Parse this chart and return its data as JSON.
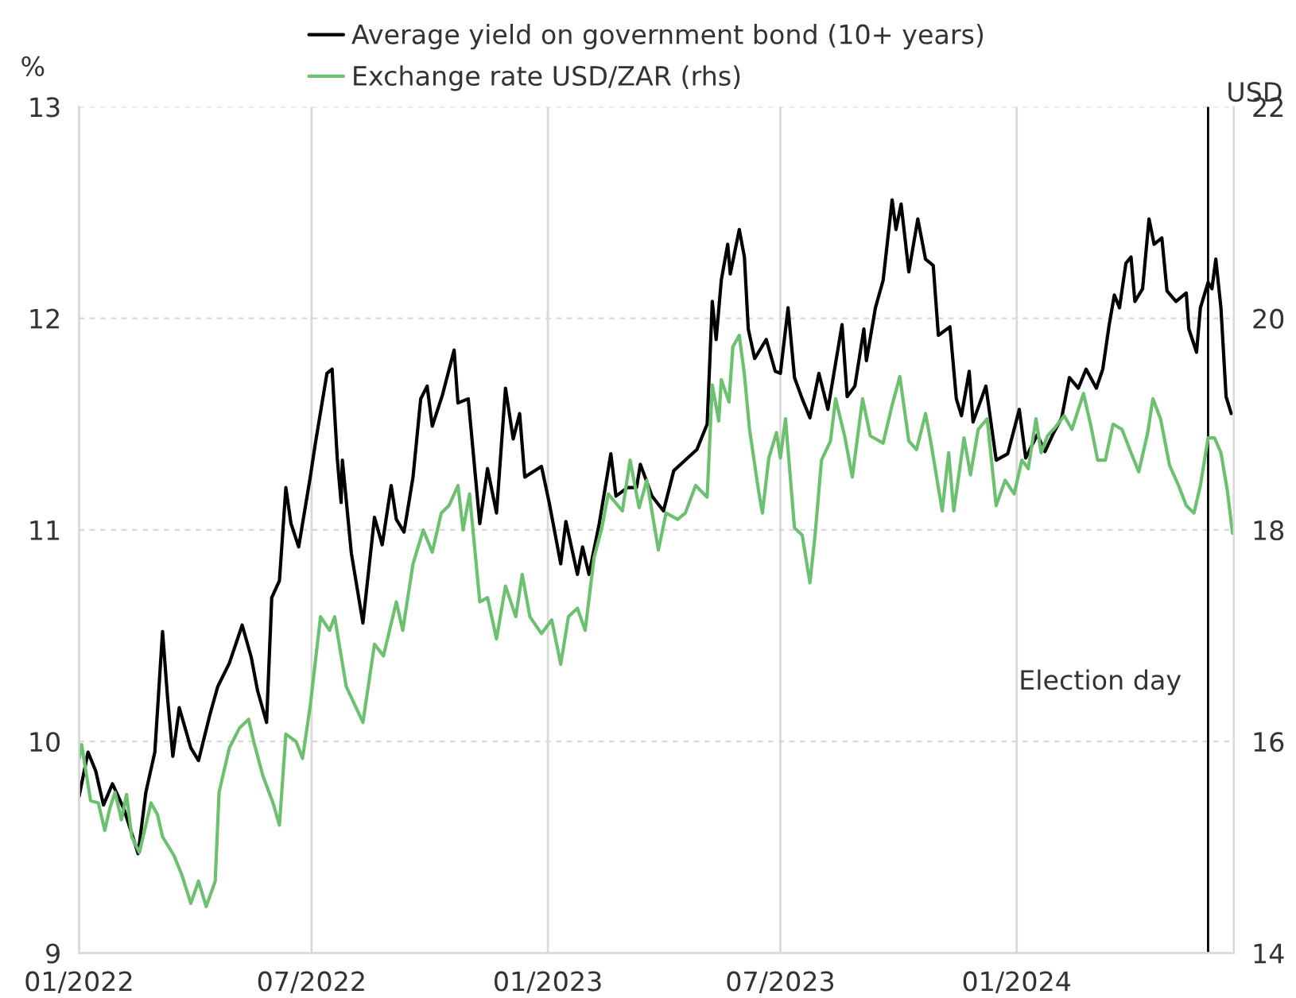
{
  "chart_data": {
    "type": "line",
    "ylabel": "%",
    "y2label": "USD",
    "xlim": [
      "2022-01-01",
      "2024-06-18"
    ],
    "xticks": [
      {
        "value": "2022-01-01",
        "label": "01/2022"
      },
      {
        "value": "2022-07-01",
        "label": "07/2022"
      },
      {
        "value": "2023-01-01",
        "label": "01/2023"
      },
      {
        "value": "2023-07-01",
        "label": "07/2023"
      },
      {
        "value": "2024-01-01",
        "label": "01/2024"
      }
    ],
    "ylim": [
      9,
      13
    ],
    "yticks": [
      9,
      10,
      11,
      12,
      13
    ],
    "y2lim": [
      14,
      22
    ],
    "y2ticks": [
      14,
      16,
      18,
      20,
      22
    ],
    "grid": true,
    "legend": "top",
    "marker": "none",
    "line_style": "solid",
    "ref_lines": [
      {
        "axis": "x",
        "value": "2024-05-29",
        "label": "Election day",
        "color": "#000000"
      }
    ],
    "series": [
      {
        "name": "Average yield on government bond (10+ years)",
        "color": "#000000",
        "x": [
          "2022-01-01",
          "2022-01-08",
          "2022-01-14",
          "2022-01-20",
          "2022-01-27",
          "2022-02-05",
          "2022-02-16",
          "2022-02-22",
          "2022-03-01",
          "2022-03-07",
          "2022-03-11",
          "2022-03-15",
          "2022-03-20",
          "2022-03-29",
          "2022-04-04",
          "2022-04-13",
          "2022-04-19",
          "2022-04-28",
          "2022-05-08",
          "2022-05-15",
          "2022-05-20",
          "2022-05-27",
          "2022-05-31",
          "2022-06-06",
          "2022-06-11",
          "2022-06-15",
          "2022-06-21",
          "2022-06-30",
          "2022-07-04",
          "2022-07-13",
          "2022-07-17",
          "2022-07-21",
          "2022-07-24",
          "2022-07-25",
          "2022-08-01",
          "2022-08-10",
          "2022-08-19",
          "2022-08-25",
          "2022-09-01",
          "2022-09-05",
          "2022-09-11",
          "2022-09-18",
          "2022-09-24",
          "2022-09-29",
          "2022-10-03",
          "2022-10-11",
          "2022-10-20",
          "2022-10-23",
          "2022-10-31",
          "2022-11-09",
          "2022-11-15",
          "2022-11-22",
          "2022-11-29",
          "2022-12-05",
          "2022-12-10",
          "2022-12-14",
          "2022-12-27",
          "2023-01-02",
          "2023-01-11",
          "2023-01-15",
          "2023-01-24",
          "2023-01-28",
          "2023-02-02",
          "2023-02-10",
          "2023-02-19",
          "2023-02-23",
          "2023-03-04",
          "2023-03-11",
          "2023-03-14",
          "2023-03-23",
          "2023-04-01",
          "2023-04-09",
          "2023-04-18",
          "2023-04-27",
          "2023-05-05",
          "2023-05-09",
          "2023-05-12",
          "2023-05-16",
          "2023-05-21",
          "2023-05-23",
          "2023-05-30",
          "2023-06-03",
          "2023-06-06",
          "2023-06-11",
          "2023-06-20",
          "2023-06-27",
          "2023-07-01",
          "2023-07-07",
          "2023-07-12",
          "2023-07-18",
          "2023-07-24",
          "2023-07-31",
          "2023-08-07",
          "2023-08-18",
          "2023-08-22",
          "2023-08-28",
          "2023-09-04",
          "2023-09-06",
          "2023-09-13",
          "2023-09-19",
          "2023-09-26",
          "2023-09-29",
          "2023-10-03",
          "2023-10-09",
          "2023-10-16",
          "2023-10-22",
          "2023-10-28",
          "2023-11-01",
          "2023-11-10",
          "2023-11-15",
          "2023-11-19",
          "2023-11-25",
          "2023-11-28",
          "2023-12-08",
          "2023-12-16",
          "2023-12-25",
          "2024-01-03",
          "2024-01-08",
          "2024-01-17",
          "2024-01-23",
          "2024-01-29",
          "2024-02-05",
          "2024-02-11",
          "2024-02-18",
          "2024-02-24",
          "2024-03-03",
          "2024-03-08",
          "2024-03-13",
          "2024-03-17",
          "2024-03-21",
          "2024-03-26",
          "2024-03-30",
          "2024-04-02",
          "2024-04-08",
          "2024-04-13",
          "2024-04-17",
          "2024-04-23",
          "2024-04-27",
          "2024-05-04",
          "2024-05-12",
          "2024-05-14",
          "2024-05-20",
          "2024-05-23",
          "2024-05-29",
          "2024-06-01",
          "2024-06-04",
          "2024-06-08",
          "2024-06-12",
          "2024-06-16"
        ],
        "values": [
          9.74,
          9.95,
          9.86,
          9.7,
          9.8,
          9.68,
          9.47,
          9.76,
          9.95,
          10.52,
          10.2,
          9.93,
          10.16,
          9.97,
          9.91,
          10.13,
          10.26,
          10.37,
          10.55,
          10.4,
          10.24,
          10.09,
          10.68,
          10.76,
          11.2,
          11.03,
          10.92,
          11.25,
          11.41,
          11.74,
          11.76,
          11.34,
          11.13,
          11.33,
          10.89,
          10.56,
          11.06,
          10.93,
          11.21,
          11.05,
          10.99,
          11.25,
          11.62,
          11.68,
          11.49,
          11.64,
          11.85,
          11.6,
          11.62,
          11.03,
          11.29,
          11.08,
          11.67,
          11.43,
          11.55,
          11.25,
          11.3,
          11.13,
          10.84,
          11.04,
          10.79,
          10.92,
          10.79,
          11.03,
          11.36,
          11.16,
          11.2,
          11.2,
          11.31,
          11.16,
          11.09,
          11.28,
          11.33,
          11.38,
          11.5,
          12.08,
          11.9,
          12.18,
          12.35,
          12.21,
          12.42,
          12.29,
          11.95,
          11.81,
          11.9,
          11.75,
          11.74,
          12.05,
          11.72,
          11.62,
          11.53,
          11.74,
          11.57,
          11.97,
          11.63,
          11.68,
          11.95,
          11.8,
          12.05,
          12.18,
          12.56,
          12.42,
          12.54,
          12.22,
          12.47,
          12.28,
          12.25,
          11.92,
          11.96,
          11.62,
          11.54,
          11.75,
          11.51,
          11.68,
          11.33,
          11.36,
          11.57,
          11.34,
          11.45,
          11.37,
          11.45,
          11.53,
          11.72,
          11.67,
          11.76,
          11.67,
          11.76,
          11.97,
          12.11,
          12.05,
          12.26,
          12.29,
          12.08,
          12.14,
          12.47,
          12.35,
          12.38,
          12.13,
          12.08,
          12.12,
          11.95,
          11.84,
          12.05,
          12.17,
          12.14,
          12.28,
          12.05,
          11.63,
          11.55
        ]
      },
      {
        "name": "Exchange rate USD/ZAR (rhs)",
        "color": "#6cc070",
        "axis": "y2",
        "x": [
          "2022-01-01",
          "2022-01-03",
          "2022-01-10",
          "2022-01-16",
          "2022-01-21",
          "2022-01-25",
          "2022-01-29",
          "2022-02-03",
          "2022-02-07",
          "2022-02-11",
          "2022-02-17",
          "2022-02-22",
          "2022-02-26",
          "2022-03-03",
          "2022-03-07",
          "2022-03-16",
          "2022-03-22",
          "2022-03-29",
          "2022-04-04",
          "2022-04-10",
          "2022-04-17",
          "2022-04-20",
          "2022-04-28",
          "2022-05-06",
          "2022-05-13",
          "2022-05-17",
          "2022-05-24",
          "2022-06-01",
          "2022-06-06",
          "2022-06-11",
          "2022-06-19",
          "2022-06-24",
          "2022-06-30",
          "2022-07-08",
          "2022-07-15",
          "2022-07-19",
          "2022-07-28",
          "2022-08-10",
          "2022-08-19",
          "2022-08-26",
          "2022-09-05",
          "2022-09-10",
          "2022-09-18",
          "2022-09-26",
          "2022-10-03",
          "2022-10-10",
          "2022-10-16",
          "2022-10-23",
          "2022-10-27",
          "2022-11-01",
          "2022-11-09",
          "2022-11-15",
          "2022-11-22",
          "2022-11-29",
          "2022-12-07",
          "2022-12-12",
          "2022-12-18",
          "2022-12-27",
          "2023-01-04",
          "2023-01-11",
          "2023-01-17",
          "2023-01-24",
          "2023-01-30",
          "2023-02-06",
          "2023-02-12",
          "2023-02-17",
          "2023-02-28",
          "2023-03-06",
          "2023-03-13",
          "2023-03-19",
          "2023-03-28",
          "2023-04-03",
          "2023-04-12",
          "2023-04-18",
          "2023-04-26",
          "2023-05-05",
          "2023-05-09",
          "2023-05-14",
          "2023-05-16",
          "2023-05-22",
          "2023-05-25",
          "2023-05-30",
          "2023-06-03",
          "2023-06-07",
          "2023-06-14",
          "2023-06-17",
          "2023-06-22",
          "2023-06-28",
          "2023-07-01",
          "2023-07-05",
          "2023-07-12",
          "2023-07-18",
          "2023-07-24",
          "2023-07-28",
          "2023-08-02",
          "2023-08-09",
          "2023-08-13",
          "2023-08-20",
          "2023-08-26",
          "2023-09-03",
          "2023-09-09",
          "2023-09-19",
          "2023-09-26",
          "2023-10-02",
          "2023-10-09",
          "2023-10-15",
          "2023-10-22",
          "2023-10-26",
          "2023-11-04",
          "2023-11-09",
          "2023-11-13",
          "2023-11-21",
          "2023-11-26",
          "2023-12-02",
          "2023-12-09",
          "2023-12-16",
          "2023-12-23",
          "2023-12-30",
          "2024-01-05",
          "2024-01-10",
          "2024-01-16",
          "2024-01-20",
          "2024-01-25",
          "2024-01-31",
          "2024-02-07",
          "2024-02-13",
          "2024-02-22",
          "2024-02-28",
          "2024-03-04",
          "2024-03-10",
          "2024-03-16",
          "2024-03-23",
          "2024-03-30",
          "2024-04-05",
          "2024-04-12",
          "2024-04-16",
          "2024-04-22",
          "2024-04-29",
          "2024-05-06",
          "2024-05-12",
          "2024-05-18",
          "2024-05-23",
          "2024-05-29",
          "2024-06-03",
          "2024-06-08",
          "2024-06-13",
          "2024-06-17"
        ],
        "values": [
          15.84,
          15.97,
          15.44,
          15.42,
          15.16,
          15.37,
          15.52,
          15.26,
          15.5,
          15.1,
          14.95,
          15.21,
          15.42,
          15.31,
          15.1,
          14.92,
          14.74,
          14.47,
          14.68,
          14.44,
          14.68,
          15.52,
          15.94,
          16.13,
          16.21,
          16.0,
          15.68,
          15.42,
          15.21,
          16.07,
          16.0,
          15.84,
          16.34,
          17.18,
          17.05,
          17.18,
          16.52,
          16.18,
          16.92,
          16.81,
          17.32,
          17.05,
          17.68,
          18.0,
          17.79,
          18.16,
          18.23,
          18.42,
          18.0,
          18.34,
          17.32,
          17.36,
          16.97,
          17.47,
          17.18,
          17.58,
          17.18,
          17.02,
          17.15,
          16.73,
          17.18,
          17.26,
          17.05,
          17.74,
          18.02,
          18.34,
          18.18,
          18.66,
          18.21,
          18.47,
          17.81,
          18.16,
          18.1,
          18.16,
          18.42,
          18.31,
          19.37,
          19.03,
          19.42,
          19.21,
          19.73,
          19.84,
          19.47,
          18.95,
          18.37,
          18.16,
          18.68,
          18.92,
          18.68,
          19.05,
          18.02,
          17.95,
          17.5,
          17.95,
          18.66,
          18.84,
          19.24,
          18.89,
          18.5,
          19.24,
          18.89,
          18.82,
          19.18,
          19.45,
          18.84,
          18.76,
          19.1,
          18.84,
          18.18,
          18.73,
          18.18,
          18.87,
          18.52,
          18.95,
          19.05,
          18.23,
          18.47,
          18.34,
          18.66,
          18.58,
          19.05,
          18.73,
          18.89,
          18.97,
          19.08,
          18.95,
          19.29,
          18.97,
          18.66,
          18.66,
          19.0,
          18.95,
          18.73,
          18.55,
          18.92,
          19.24,
          19.05,
          18.61,
          18.42,
          18.23,
          18.16,
          18.42,
          18.87,
          18.87,
          18.73,
          18.37,
          17.97
        ]
      }
    ]
  }
}
